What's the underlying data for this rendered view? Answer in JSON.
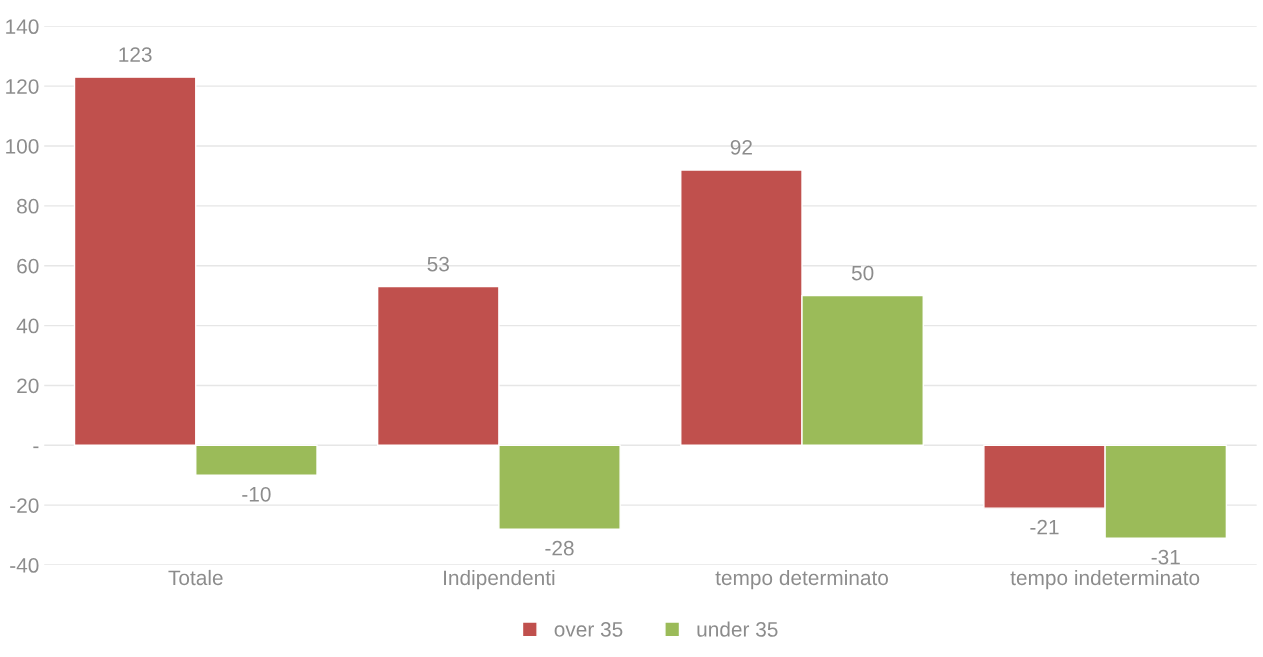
{
  "chart_data": {
    "type": "bar",
    "categories": [
      "Totale",
      "Indipendenti",
      "tempo determinato",
      "tempo indeterminato"
    ],
    "series": [
      {
        "name": "over 35",
        "color": "#c0504d",
        "values": [
          123,
          53,
          92,
          -21
        ]
      },
      {
        "name": "under 35",
        "color": "#9bbb59",
        "values": [
          -10,
          -28,
          50,
          -31
        ]
      }
    ],
    "ylim": [
      -40,
      140
    ],
    "yticks": [
      -40,
      -20,
      {
        "value": 0,
        "label": "-"
      },
      20,
      40,
      60,
      80,
      100,
      120,
      140
    ],
    "grid": "y",
    "legend": "bottom",
    "data_labels": true
  }
}
